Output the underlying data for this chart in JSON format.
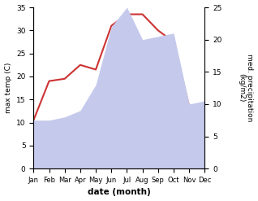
{
  "months": [
    "Jan",
    "Feb",
    "Mar",
    "Apr",
    "May",
    "Jun",
    "Jul",
    "Aug",
    "Sep",
    "Oct",
    "Nov",
    "Dec"
  ],
  "temp": [
    10.5,
    19.0,
    19.5,
    22.5,
    21.5,
    31.0,
    33.5,
    33.5,
    30.0,
    27.5,
    13.5,
    14.0
  ],
  "precip": [
    7.5,
    7.5,
    8.0,
    9.0,
    13.0,
    22.0,
    25.0,
    20.0,
    20.5,
    21.0,
    10.0,
    10.5
  ],
  "temp_color": "#cc3333",
  "precip_fill_color": "#c5caec",
  "ylabel_left": "max temp (C)",
  "ylabel_right": "med. precipitation\n(kg/m2)",
  "xlabel": "date (month)",
  "ylim_left": [
    0,
    35
  ],
  "ylim_right": [
    0,
    25
  ],
  "yticks_left": [
    0,
    5,
    10,
    15,
    20,
    25,
    30,
    35
  ],
  "yticks_right": [
    0,
    5,
    10,
    15,
    20,
    25
  ],
  "background": "#ffffff"
}
